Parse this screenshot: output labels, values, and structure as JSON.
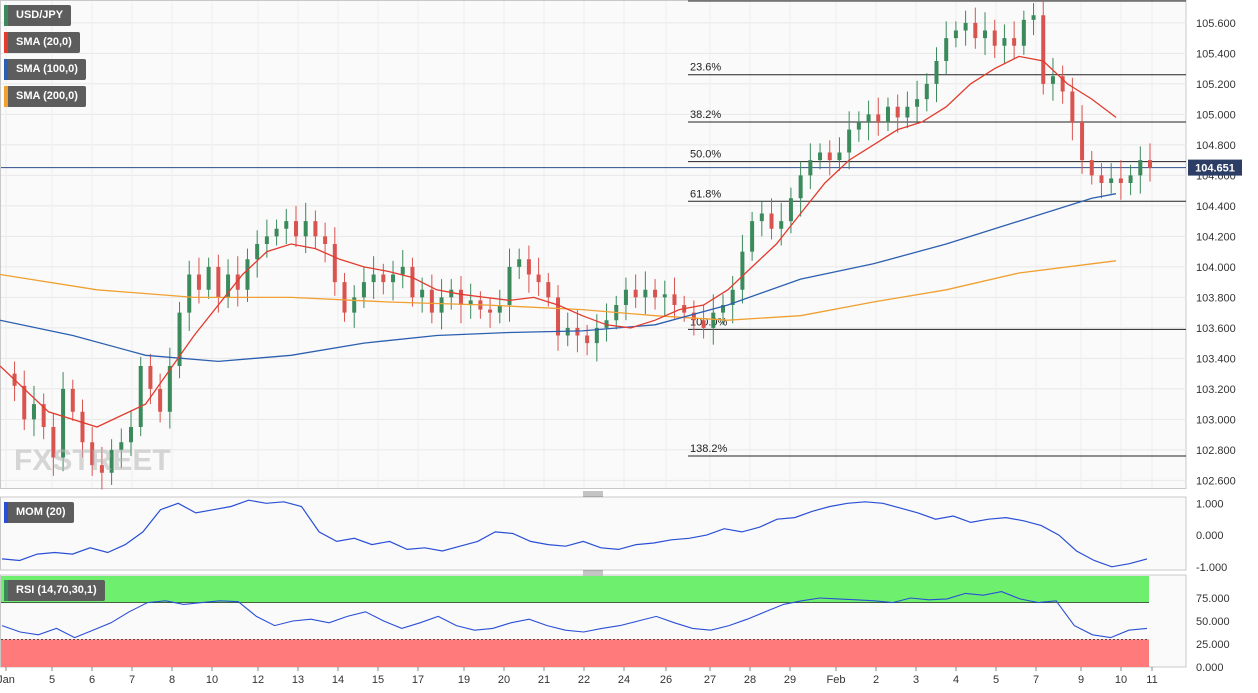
{
  "legends": {
    "symbol": "USD/JPY",
    "sma20": "SMA (20,0)",
    "sma100": "SMA (100,0)",
    "sma200": "SMA (200,0)",
    "mom": "MOM (20)",
    "rsi": "RSI (14,70,30,1)"
  },
  "watermark": "FXSTREET",
  "price_label": "104.651",
  "colors": {
    "up": "#3a8a5b",
    "down": "#d9534f",
    "sma20": "#e23b2e",
    "sma100": "#2d5fb0",
    "sma200": "#f0a030",
    "mom": "#2a4fd6",
    "rsi": "#2a4fd6",
    "overbought": "#6ef06e",
    "oversold": "#ff7b7b"
  },
  "chart_data": [
    {
      "type": "candlestick",
      "title": "USD/JPY",
      "y_ticks": [
        "102.600",
        "102.800",
        "103.000",
        "103.200",
        "103.400",
        "103.600",
        "103.800",
        "104.000",
        "104.200",
        "104.400",
        "104.600",
        "104.800",
        "105.000",
        "105.200",
        "105.400",
        "105.600"
      ],
      "ylim": [
        102.55,
        105.75
      ],
      "x_ticks": [
        "Jan",
        "5",
        "6",
        "7",
        "8",
        "10",
        "12",
        "13",
        "14",
        "15",
        "17",
        "19",
        "20",
        "21",
        "22",
        "24",
        "26",
        "27",
        "28",
        "29",
        "Feb",
        "2",
        "3",
        "4",
        "5",
        "7",
        "9",
        "10",
        "11"
      ],
      "current_price": 104.651,
      "fibonacci": [
        {
          "label": "23.6%",
          "value": 105.26
        },
        {
          "label": "38.2%",
          "value": 104.95
        },
        {
          "label": "50.0%",
          "value": 104.69
        },
        {
          "label": "61.8%",
          "value": 104.43
        },
        {
          "label": "100.0%",
          "value": 103.59
        },
        {
          "label": "138.2%",
          "value": 102.76
        }
      ],
      "close_path": [
        [
          0,
          103.3
        ],
        [
          6,
          103.22
        ],
        [
          10,
          103.0
        ],
        [
          14,
          103.1
        ],
        [
          18,
          102.95
        ],
        [
          22,
          102.75
        ],
        [
          26,
          103.2
        ],
        [
          30,
          103.05
        ],
        [
          34,
          102.85
        ],
        [
          38,
          102.7
        ],
        [
          42,
          102.65
        ],
        [
          46,
          102.8
        ],
        [
          50,
          102.85
        ],
        [
          54,
          102.95
        ],
        [
          58,
          103.35
        ],
        [
          62,
          103.2
        ],
        [
          66,
          103.05
        ],
        [
          70,
          103.35
        ],
        [
          74,
          103.7
        ],
        [
          78,
          103.95
        ],
        [
          82,
          103.85
        ],
        [
          86,
          104.0
        ],
        [
          90,
          103.8
        ],
        [
          94,
          103.95
        ],
        [
          98,
          103.85
        ],
        [
          102,
          104.05
        ],
        [
          106,
          104.15
        ],
        [
          110,
          104.2
        ],
        [
          114,
          104.25
        ],
        [
          118,
          104.3
        ],
        [
          122,
          104.2
        ],
        [
          126,
          104.3
        ],
        [
          130,
          104.2
        ],
        [
          134,
          104.15
        ],
        [
          138,
          103.9
        ],
        [
          142,
          103.7
        ],
        [
          146,
          103.8
        ],
        [
          150,
          103.9
        ],
        [
          154,
          103.95
        ],
        [
          158,
          103.9
        ],
        [
          162,
          103.95
        ],
        [
          166,
          104.0
        ],
        [
          170,
          103.8
        ],
        [
          174,
          103.85
        ],
        [
          178,
          103.7
        ],
        [
          182,
          103.8
        ],
        [
          186,
          103.85
        ],
        [
          190,
          103.75
        ],
        [
          194,
          103.78
        ],
        [
          198,
          103.72
        ],
        [
          202,
          103.7
        ],
        [
          206,
          103.75
        ],
        [
          210,
          104.0
        ],
        [
          214,
          104.05
        ],
        [
          218,
          103.95
        ],
        [
          222,
          103.9
        ],
        [
          226,
          103.8
        ],
        [
          230,
          103.55
        ],
        [
          234,
          103.6
        ],
        [
          238,
          103.55
        ],
        [
          242,
          103.5
        ],
        [
          246,
          103.6
        ],
        [
          250,
          103.65
        ],
        [
          254,
          103.75
        ],
        [
          258,
          103.85
        ],
        [
          262,
          103.8
        ],
        [
          266,
          103.85
        ],
        [
          270,
          103.8
        ],
        [
          274,
          103.82
        ],
        [
          278,
          103.75
        ],
        [
          282,
          103.7
        ],
        [
          286,
          103.65
        ],
        [
          290,
          103.6
        ],
        [
          294,
          103.7
        ],
        [
          298,
          103.75
        ],
        [
          302,
          103.85
        ],
        [
          306,
          104.1
        ],
        [
          310,
          104.3
        ],
        [
          314,
          104.35
        ],
        [
          318,
          104.25
        ],
        [
          322,
          104.3
        ],
        [
          326,
          104.45
        ],
        [
          330,
          104.6
        ],
        [
          334,
          104.7
        ],
        [
          338,
          104.75
        ],
        [
          342,
          104.7
        ],
        [
          346,
          104.75
        ],
        [
          350,
          104.9
        ],
        [
          354,
          104.95
        ],
        [
          358,
          105.0
        ],
        [
          362,
          104.95
        ],
        [
          366,
          105.05
        ],
        [
          370,
          104.98
        ],
        [
          374,
          105.05
        ],
        [
          378,
          105.1
        ],
        [
          382,
          105.2
        ],
        [
          386,
          105.35
        ],
        [
          390,
          105.5
        ],
        [
          394,
          105.55
        ],
        [
          398,
          105.6
        ],
        [
          402,
          105.5
        ],
        [
          406,
          105.55
        ],
        [
          410,
          105.45
        ],
        [
          414,
          105.5
        ],
        [
          418,
          105.45
        ],
        [
          422,
          105.62
        ],
        [
          426,
          105.65
        ],
        [
          430,
          105.2
        ],
        [
          434,
          105.25
        ],
        [
          438,
          105.15
        ],
        [
          442,
          104.95
        ],
        [
          446,
          104.7
        ],
        [
          450,
          104.6
        ],
        [
          454,
          104.55
        ],
        [
          458,
          104.58
        ],
        [
          462,
          104.55
        ],
        [
          466,
          104.6
        ],
        [
          470,
          104.7
        ],
        [
          474,
          104.65
        ]
      ],
      "sma20": [
        [
          0,
          103.35
        ],
        [
          20,
          103.05
        ],
        [
          40,
          102.95
        ],
        [
          60,
          103.1
        ],
        [
          80,
          103.55
        ],
        [
          100,
          103.95
        ],
        [
          110,
          104.1
        ],
        [
          120,
          104.15
        ],
        [
          130,
          104.12
        ],
        [
          140,
          104.05
        ],
        [
          150,
          104.0
        ],
        [
          160,
          103.97
        ],
        [
          170,
          103.93
        ],
        [
          180,
          103.85
        ],
        [
          190,
          103.82
        ],
        [
          200,
          103.8
        ],
        [
          210,
          103.78
        ],
        [
          220,
          103.8
        ],
        [
          230,
          103.75
        ],
        [
          240,
          103.68
        ],
        [
          250,
          103.62
        ],
        [
          260,
          103.6
        ],
        [
          270,
          103.65
        ],
        [
          280,
          103.72
        ],
        [
          290,
          103.75
        ],
        [
          300,
          103.85
        ],
        [
          310,
          104.0
        ],
        [
          320,
          104.15
        ],
        [
          330,
          104.35
        ],
        [
          340,
          104.55
        ],
        [
          350,
          104.7
        ],
        [
          360,
          104.8
        ],
        [
          370,
          104.9
        ],
        [
          380,
          104.95
        ],
        [
          390,
          105.05
        ],
        [
          400,
          105.2
        ],
        [
          410,
          105.3
        ],
        [
          420,
          105.38
        ],
        [
          430,
          105.35
        ],
        [
          440,
          105.2
        ],
        [
          450,
          105.1
        ],
        [
          460,
          104.98
        ]
      ],
      "sma100": [
        [
          0,
          103.65
        ],
        [
          30,
          103.55
        ],
        [
          60,
          103.42
        ],
        [
          90,
          103.38
        ],
        [
          120,
          103.42
        ],
        [
          150,
          103.5
        ],
        [
          180,
          103.55
        ],
        [
          210,
          103.57
        ],
        [
          240,
          103.58
        ],
        [
          270,
          103.62
        ],
        [
          300,
          103.75
        ],
        [
          330,
          103.92
        ],
        [
          360,
          104.02
        ],
        [
          390,
          104.15
        ],
        [
          420,
          104.3
        ],
        [
          450,
          104.45
        ],
        [
          460,
          104.48
        ]
      ],
      "sma200": [
        [
          0,
          103.95
        ],
        [
          40,
          103.85
        ],
        [
          80,
          103.8
        ],
        [
          120,
          103.8
        ],
        [
          160,
          103.77
        ],
        [
          200,
          103.75
        ],
        [
          240,
          103.72
        ],
        [
          270,
          103.68
        ],
        [
          300,
          103.65
        ],
        [
          330,
          103.68
        ],
        [
          360,
          103.77
        ],
        [
          390,
          103.85
        ],
        [
          420,
          103.96
        ],
        [
          450,
          104.02
        ],
        [
          460,
          104.04
        ]
      ]
    },
    {
      "type": "line",
      "title": "MOM (20)",
      "y_ticks": [
        "1.000",
        "0.000",
        "-1.000"
      ],
      "ylim": [
        -1.1,
        1.2
      ],
      "values": [
        -0.75,
        -0.8,
        -0.6,
        -0.55,
        -0.6,
        -0.4,
        -0.55,
        -0.3,
        0.1,
        0.8,
        1.0,
        0.7,
        0.8,
        0.9,
        1.1,
        1.0,
        1.05,
        0.9,
        0.1,
        -0.2,
        -0.1,
        -0.3,
        -0.2,
        -0.45,
        -0.4,
        -0.5,
        -0.35,
        -0.2,
        0.1,
        0.05,
        -0.2,
        -0.3,
        -0.35,
        -0.2,
        -0.4,
        -0.45,
        -0.3,
        -0.25,
        -0.15,
        -0.1,
        0.0,
        0.2,
        0.1,
        0.25,
        0.5,
        0.55,
        0.75,
        0.9,
        1.0,
        1.05,
        1.0,
        0.85,
        0.7,
        0.5,
        0.6,
        0.4,
        0.5,
        0.55,
        0.45,
        0.3,
        0.0,
        -0.5,
        -0.8,
        -1.0,
        -0.9,
        -0.75
      ]
    },
    {
      "type": "line",
      "title": "RSI (14,70,30,1)",
      "y_ticks": [
        "75.000",
        "50.000",
        "25.000",
        "0.000"
      ],
      "ylim": [
        0,
        100
      ],
      "levels": [
        70,
        30
      ],
      "values": [
        45,
        38,
        35,
        42,
        32,
        40,
        48,
        60,
        70,
        72,
        68,
        70,
        72,
        71,
        55,
        45,
        50,
        52,
        48,
        55,
        60,
        50,
        42,
        48,
        55,
        45,
        40,
        42,
        48,
        52,
        45,
        40,
        38,
        42,
        45,
        50,
        55,
        48,
        42,
        40,
        45,
        52,
        60,
        68,
        72,
        75,
        74,
        73,
        72,
        70,
        75,
        73,
        74,
        80,
        78,
        82,
        74,
        70,
        72,
        45,
        35,
        32,
        40,
        42
      ]
    }
  ]
}
